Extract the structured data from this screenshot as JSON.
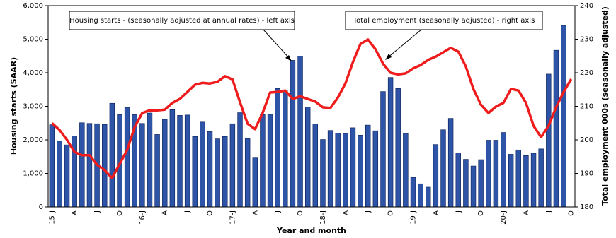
{
  "chart_data": {
    "type": "bar-line",
    "x_label": "Year and month",
    "y_label": "Housing starts (SAAR)",
    "y2_label": "Total employment 000s (seasonally adjusted)",
    "categories": [
      "15-J",
      null,
      null,
      "A",
      null,
      null,
      "J",
      null,
      null,
      "O",
      null,
      null,
      "16-J",
      null,
      null,
      "A",
      null,
      null,
      "J",
      null,
      null,
      "O",
      null,
      null,
      "17-J",
      null,
      null,
      "A",
      null,
      null,
      "J",
      null,
      null,
      "O",
      null,
      null,
      "18-J",
      null,
      null,
      "A",
      null,
      null,
      "J",
      null,
      null,
      "O",
      null,
      null,
      "19-J",
      null,
      null,
      "A",
      null,
      null,
      "J",
      null,
      null,
      "O",
      null,
      null,
      "20-J",
      null,
      null,
      "A",
      null,
      null,
      "J",
      null,
      null,
      "O"
    ],
    "series": [
      {
        "name": "Housing starts - (seasonally adjusted at annual rates) - left axis",
        "type": "bar",
        "color": "#2e54a8",
        "values": [
          2450,
          1960,
          1850,
          2110,
          2510,
          2490,
          2480,
          2460,
          3090,
          2750,
          2960,
          2750,
          2490,
          2800,
          2160,
          2610,
          2900,
          2730,
          2740,
          2100,
          2530,
          2250,
          2030,
          2100,
          2480,
          2810,
          2040,
          1460,
          2750,
          2760,
          3530,
          3460,
          4370,
          4490,
          2980,
          2470,
          2010,
          2280,
          2200,
          2190,
          2360,
          2140,
          2440,
          2270,
          3440,
          3860,
          3530,
          2190,
          880,
          690,
          590,
          1860,
          2300,
          2640,
          1610,
          1420,
          1220,
          1410,
          1990,
          1990,
          2220,
          1570,
          1700,
          1530,
          1600,
          1730,
          3960,
          4670,
          5410,
          null
        ]
      },
      {
        "name": "Total employment (seasonally adjusted) - right axis",
        "type": "line",
        "axis": "y2",
        "color": "#ee1c1c",
        "values": [
          205,
          203,
          200,
          196.4,
          195.4,
          195.4,
          192.6,
          191,
          188.6,
          192.8,
          197,
          203.8,
          208,
          208.8,
          208.8,
          209,
          211,
          212.2,
          214.3,
          216.4,
          217,
          216.8,
          217.3,
          219,
          218,
          211.2,
          204.8,
          203.2,
          208,
          214.1,
          214.3,
          214.7,
          212.2,
          213,
          212.2,
          211.4,
          209.7,
          209.5,
          212.6,
          216.8,
          223.2,
          228.6,
          229.9,
          227,
          222.7,
          220,
          219.5,
          219.8,
          221.3,
          222.3,
          223.8,
          224.8,
          226.1,
          227.4,
          226.3,
          221.9,
          215.2,
          210.5,
          208,
          209.9,
          211,
          215.2,
          214.7,
          211,
          204.2,
          200.8,
          204.2,
          209.7,
          214.3,
          218.1
        ]
      }
    ],
    "ylim": [
      0,
      6000
    ],
    "yticks": [
      0,
      {
        "value": 1000,
        "label": "1,000"
      },
      {
        "value": 2000,
        "label": "2,000"
      },
      {
        "value": 3000,
        "label": "3,000"
      },
      {
        "value": 4000,
        "label": "4,000"
      },
      {
        "value": 5000,
        "label": "5,000"
      },
      {
        "value": 6000,
        "label": "6,000"
      }
    ],
    "y2lim": [
      180,
      240
    ],
    "y2ticks": [
      180,
      190,
      200,
      210,
      220,
      230,
      240
    ],
    "grid": false
  }
}
